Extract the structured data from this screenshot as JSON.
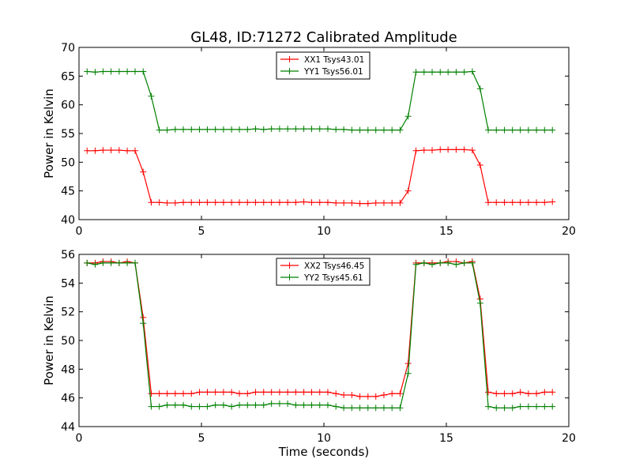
{
  "chart_data": [
    {
      "type": "line",
      "title": "GL48, ID:71272 Calibrated Amplitude",
      "xlabel": "",
      "ylabel": "Power in Kelvin",
      "xlim": [
        0,
        20
      ],
      "ylim": [
        40,
        70
      ],
      "xticks": [
        0,
        5,
        10,
        15,
        20
      ],
      "yticks": [
        40,
        45,
        50,
        55,
        60,
        65,
        70
      ],
      "marker": "+",
      "legend_position": "top-center",
      "x": [
        0.33,
        0.66,
        0.98,
        1.31,
        1.64,
        1.97,
        2.29,
        2.62,
        2.95,
        3.28,
        3.6,
        3.93,
        4.26,
        4.59,
        4.92,
        5.24,
        5.57,
        5.9,
        6.23,
        6.55,
        6.88,
        7.21,
        7.54,
        7.86,
        8.19,
        8.52,
        8.85,
        9.18,
        9.5,
        9.83,
        10.16,
        10.49,
        10.81,
        11.14,
        11.47,
        11.8,
        12.12,
        12.45,
        12.78,
        13.11,
        13.44,
        13.76,
        14.09,
        14.42,
        14.75,
        15.07,
        15.4,
        15.73,
        16.06,
        16.38,
        16.71,
        17.04,
        17.37,
        17.7,
        18.02,
        18.35,
        18.68,
        19.01,
        19.33
      ],
      "series": [
        {
          "name": "XX1 Tsys43.01",
          "color": "#ff0000",
          "values": [
            52.0,
            52.0,
            52.1,
            52.1,
            52.1,
            52.0,
            52.0,
            48.3,
            43.0,
            43.0,
            42.9,
            42.9,
            43.0,
            43.0,
            43.0,
            43.0,
            43.0,
            43.0,
            43.0,
            43.0,
            43.0,
            43.0,
            43.0,
            43.0,
            43.0,
            43.0,
            43.0,
            43.1,
            43.0,
            43.0,
            43.0,
            42.9,
            42.9,
            42.9,
            42.8,
            42.8,
            42.9,
            42.9,
            42.9,
            42.9,
            45.0,
            52.0,
            52.1,
            52.1,
            52.2,
            52.2,
            52.2,
            52.2,
            52.1,
            49.5,
            43.0,
            43.0,
            43.0,
            43.0,
            43.0,
            43.0,
            43.0,
            43.0,
            43.1
          ]
        },
        {
          "name": "YY1 Tsys56.01",
          "color": "#008000",
          "values": [
            65.8,
            65.7,
            65.8,
            65.8,
            65.8,
            65.8,
            65.8,
            65.8,
            61.5,
            55.6,
            55.6,
            55.7,
            55.7,
            55.7,
            55.7,
            55.7,
            55.7,
            55.7,
            55.7,
            55.7,
            55.7,
            55.8,
            55.7,
            55.8,
            55.8,
            55.8,
            55.8,
            55.8,
            55.8,
            55.8,
            55.8,
            55.7,
            55.7,
            55.6,
            55.6,
            55.6,
            55.6,
            55.6,
            55.6,
            55.6,
            58.0,
            65.7,
            65.7,
            65.7,
            65.7,
            65.7,
            65.7,
            65.7,
            65.8,
            62.8,
            55.6,
            55.6,
            55.6,
            55.6,
            55.6,
            55.6,
            55.6,
            55.6,
            55.6
          ]
        }
      ]
    },
    {
      "type": "line",
      "title": "",
      "xlabel": "Time (seconds)",
      "ylabel": "Power in Kelvin",
      "xlim": [
        0,
        20
      ],
      "ylim": [
        44,
        56
      ],
      "xticks": [
        0,
        5,
        10,
        15,
        20
      ],
      "yticks": [
        44,
        46,
        48,
        50,
        52,
        54,
        56
      ],
      "marker": "+",
      "legend_position": "top-center",
      "x": [
        0.33,
        0.66,
        0.98,
        1.31,
        1.64,
        1.97,
        2.29,
        2.62,
        2.95,
        3.28,
        3.6,
        3.93,
        4.26,
        4.59,
        4.92,
        5.24,
        5.57,
        5.9,
        6.23,
        6.55,
        6.88,
        7.21,
        7.54,
        7.86,
        8.19,
        8.52,
        8.85,
        9.18,
        9.5,
        9.83,
        10.16,
        10.49,
        10.81,
        11.14,
        11.47,
        11.8,
        12.12,
        12.45,
        12.78,
        13.11,
        13.44,
        13.76,
        14.09,
        14.42,
        14.75,
        15.07,
        15.4,
        15.73,
        16.06,
        16.38,
        16.71,
        17.04,
        17.37,
        17.7,
        18.02,
        18.35,
        18.68,
        19.01,
        19.33
      ],
      "series": [
        {
          "name": "XX2 Tsys46.45",
          "color": "#ff0000",
          "values": [
            55.4,
            55.4,
            55.5,
            55.5,
            55.4,
            55.5,
            55.4,
            51.6,
            46.3,
            46.3,
            46.3,
            46.3,
            46.3,
            46.3,
            46.4,
            46.4,
            46.4,
            46.4,
            46.4,
            46.3,
            46.3,
            46.4,
            46.4,
            46.4,
            46.4,
            46.4,
            46.4,
            46.4,
            46.4,
            46.4,
            46.4,
            46.3,
            46.2,
            46.2,
            46.1,
            46.1,
            46.1,
            46.2,
            46.3,
            46.3,
            48.4,
            55.4,
            55.4,
            55.4,
            55.4,
            55.5,
            55.5,
            55.4,
            55.5,
            52.9,
            46.4,
            46.3,
            46.3,
            46.3,
            46.4,
            46.3,
            46.3,
            46.4,
            46.4
          ]
        },
        {
          "name": "YY2 Tsys45.61",
          "color": "#008000",
          "values": [
            55.4,
            55.3,
            55.4,
            55.4,
            55.4,
            55.4,
            55.4,
            51.2,
            45.4,
            45.4,
            45.5,
            45.5,
            45.5,
            45.4,
            45.4,
            45.4,
            45.5,
            45.5,
            45.4,
            45.5,
            45.5,
            45.5,
            45.5,
            45.6,
            45.6,
            45.6,
            45.5,
            45.5,
            45.5,
            45.5,
            45.5,
            45.4,
            45.3,
            45.3,
            45.3,
            45.3,
            45.3,
            45.3,
            45.3,
            45.3,
            47.7,
            55.3,
            55.4,
            55.3,
            55.4,
            55.4,
            55.3,
            55.4,
            55.4,
            52.6,
            45.4,
            45.3,
            45.3,
            45.3,
            45.4,
            45.4,
            45.4,
            45.4,
            45.4
          ]
        }
      ]
    }
  ]
}
